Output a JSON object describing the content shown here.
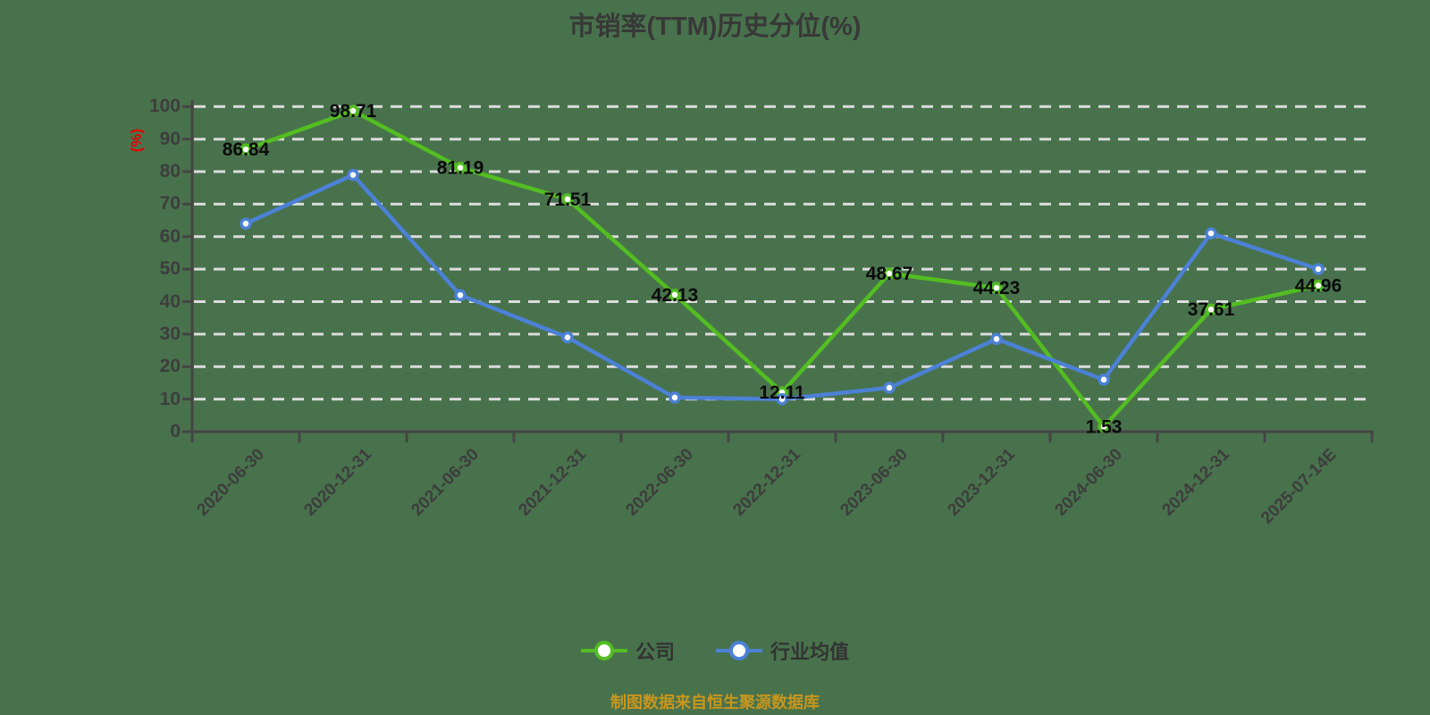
{
  "caption": "制图数据来自恒生聚源数据库",
  "chart_data": {
    "type": "line",
    "title": "市销率(TTM)历史分位(%)",
    "ylabel": "(%)",
    "ylim": [
      0,
      100
    ],
    "ytick_step": 10,
    "grid": "horizontal-dashed-white",
    "legend_position": "bottom-center",
    "categories": [
      "2020-06-30",
      "2020-12-31",
      "2021-06-30",
      "2021-12-31",
      "2022-06-30",
      "2022-12-31",
      "2023-06-30",
      "2023-12-31",
      "2024-06-30",
      "2024-12-31",
      "2025-07-14E"
    ],
    "series": [
      {
        "name": "公司",
        "color": "#53bd22",
        "values": [
          86.84,
          98.71,
          81.19,
          71.51,
          42.13,
          12.11,
          48.67,
          44.23,
          1.53,
          37.61,
          44.96
        ],
        "labels": [
          "86.84",
          "98.71",
          "81.19",
          "71.51",
          "42.13",
          "12.11",
          "48.67",
          "44.23",
          "1.53",
          "37.61",
          "44.96"
        ]
      },
      {
        "name": "行业均值",
        "color": "#4c81d6",
        "values": [
          64,
          79,
          42,
          29,
          10.5,
          10,
          13.5,
          28.5,
          16,
          61,
          50
        ],
        "labels": []
      }
    ]
  },
  "colors": {
    "background": "#48724c",
    "grid": "#dcdcdc",
    "axis": "#454545",
    "tick_label": "#3d3d3d",
    "data_label": "#0a0a0a",
    "title": "#383838",
    "y_unit": "#e60000",
    "caption": "#c8961e",
    "legend_text": "#333333"
  }
}
